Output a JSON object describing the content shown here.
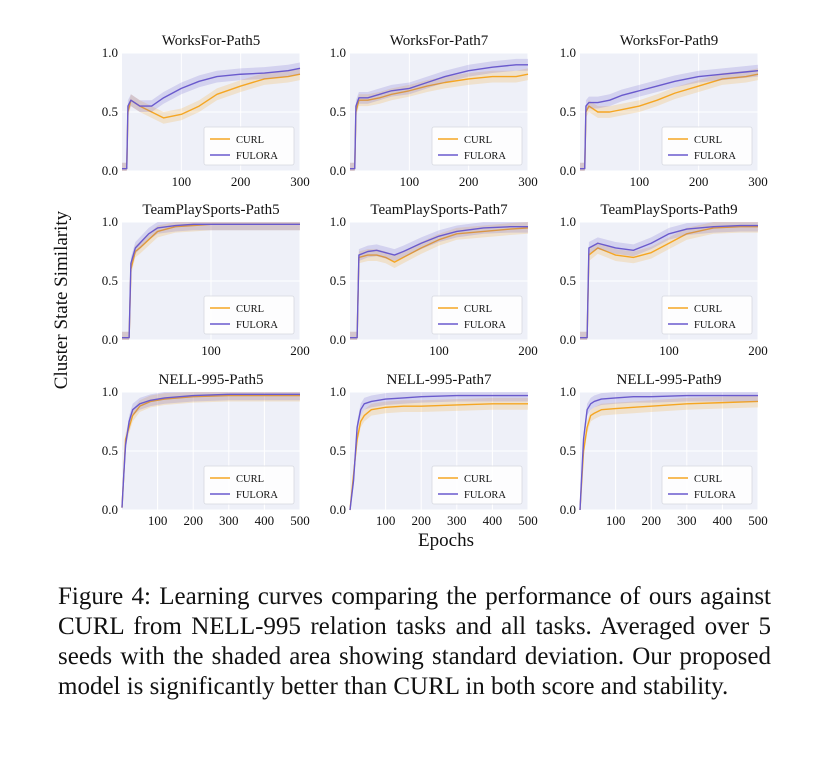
{
  "figure": {
    "ylabel": "Cluster State Similarity",
    "xlabel": "Epochs",
    "caption": "Figure 4: Learning curves comparing the performance of ours against CURL from NELL-995 relation tasks and all tasks. Averaged over 5 seeds with the shaded area showing standard deviation. Our proposed model is significantly better than CURL in both score and stability."
  },
  "colors": {
    "curl": "#f5a623",
    "fulora": "#6a5acd",
    "panel_bg": "#eef0f8",
    "grid": "#ffffff"
  },
  "chart_data": [
    {
      "type": "line",
      "title": "WorksFor-Path5",
      "xlim": [
        0,
        300
      ],
      "ylim": [
        0,
        1.0
      ],
      "xticks": [
        100,
        200,
        300
      ],
      "yticks": [
        0.0,
        0.5,
        1.0
      ],
      "ytick_labels": [
        "0.0",
        "0.5",
        "1.0"
      ],
      "legend": "bottom-right",
      "series": [
        {
          "name": "CURL",
          "x": [
            0,
            8,
            10,
            15,
            30,
            50,
            70,
            100,
            130,
            160,
            200,
            240,
            280,
            300
          ],
          "y": [
            0.02,
            0.02,
            0.5,
            0.6,
            0.55,
            0.5,
            0.45,
            0.48,
            0.55,
            0.65,
            0.72,
            0.78,
            0.8,
            0.82
          ]
        },
        {
          "name": "FULORA",
          "x": [
            0,
            8,
            10,
            15,
            30,
            50,
            70,
            100,
            130,
            160,
            200,
            240,
            280,
            300
          ],
          "y": [
            0.02,
            0.02,
            0.55,
            0.6,
            0.55,
            0.55,
            0.62,
            0.7,
            0.76,
            0.8,
            0.82,
            0.83,
            0.85,
            0.87
          ]
        }
      ]
    },
    {
      "type": "line",
      "title": "WorksFor-Path7",
      "xlim": [
        0,
        300
      ],
      "ylim": [
        0,
        1.0
      ],
      "xticks": [
        100,
        200,
        300
      ],
      "yticks": [
        0.0,
        0.5,
        1.0
      ],
      "ytick_labels": [
        "0.0",
        "0.5",
        "1.0"
      ],
      "legend": "bottom-right",
      "series": [
        {
          "name": "CURL",
          "x": [
            0,
            8,
            10,
            15,
            30,
            50,
            70,
            100,
            130,
            160,
            200,
            240,
            280,
            300
          ],
          "y": [
            0.02,
            0.02,
            0.5,
            0.6,
            0.6,
            0.62,
            0.65,
            0.68,
            0.72,
            0.75,
            0.78,
            0.8,
            0.8,
            0.82
          ]
        },
        {
          "name": "FULORA",
          "x": [
            0,
            8,
            10,
            15,
            30,
            50,
            70,
            100,
            130,
            160,
            200,
            240,
            280,
            300
          ],
          "y": [
            0.02,
            0.02,
            0.55,
            0.62,
            0.62,
            0.65,
            0.68,
            0.7,
            0.75,
            0.8,
            0.85,
            0.88,
            0.9,
            0.9
          ]
        }
      ]
    },
    {
      "type": "line",
      "title": "WorksFor-Path9",
      "xlim": [
        0,
        300
      ],
      "ylim": [
        0,
        1.0
      ],
      "xticks": [
        100,
        200,
        300
      ],
      "yticks": [
        0.0,
        0.5,
        1.0
      ],
      "ytick_labels": [
        "0.0",
        "0.5",
        "1.0"
      ],
      "legend": "bottom-right",
      "series": [
        {
          "name": "CURL",
          "x": [
            0,
            8,
            10,
            15,
            30,
            50,
            70,
            100,
            130,
            160,
            200,
            240,
            280,
            300
          ],
          "y": [
            0.02,
            0.02,
            0.5,
            0.55,
            0.5,
            0.5,
            0.52,
            0.55,
            0.6,
            0.66,
            0.72,
            0.78,
            0.8,
            0.82
          ]
        },
        {
          "name": "FULORA",
          "x": [
            0,
            8,
            10,
            15,
            30,
            50,
            70,
            100,
            130,
            160,
            200,
            240,
            280,
            300
          ],
          "y": [
            0.02,
            0.02,
            0.55,
            0.58,
            0.58,
            0.6,
            0.64,
            0.68,
            0.72,
            0.76,
            0.8,
            0.82,
            0.84,
            0.85
          ]
        }
      ]
    },
    {
      "type": "line",
      "title": "TeamPlaySports-Path5",
      "xlim": [
        0,
        200
      ],
      "ylim": [
        0,
        1.0
      ],
      "xticks": [
        100,
        200
      ],
      "yticks": [
        0.0,
        0.5,
        1.0
      ],
      "ytick_labels": [
        "0.0",
        "0.5",
        "1.0"
      ],
      "legend": "bottom-right",
      "series": [
        {
          "name": "CURL",
          "x": [
            0,
            8,
            10,
            15,
            20,
            30,
            40,
            60,
            80,
            100,
            150,
            200
          ],
          "y": [
            0.02,
            0.02,
            0.6,
            0.75,
            0.78,
            0.85,
            0.92,
            0.96,
            0.97,
            0.98,
            0.98,
            0.98
          ]
        },
        {
          "name": "FULORA",
          "x": [
            0,
            8,
            10,
            15,
            20,
            30,
            40,
            60,
            80,
            100,
            150,
            200
          ],
          "y": [
            0.02,
            0.02,
            0.65,
            0.78,
            0.82,
            0.9,
            0.95,
            0.97,
            0.98,
            0.98,
            0.98,
            0.98
          ]
        }
      ]
    },
    {
      "type": "line",
      "title": "TeamPlaySports-Path7",
      "xlim": [
        0,
        200
      ],
      "ylim": [
        0,
        1.0
      ],
      "xticks": [
        100,
        200
      ],
      "yticks": [
        0.0,
        0.5,
        1.0
      ],
      "ytick_labels": [
        "0.0",
        "0.5",
        "1.0"
      ],
      "legend": "bottom-right",
      "series": [
        {
          "name": "CURL",
          "x": [
            0,
            8,
            10,
            20,
            30,
            40,
            50,
            60,
            80,
            100,
            120,
            150,
            180,
            200
          ],
          "y": [
            0.02,
            0.02,
            0.7,
            0.72,
            0.72,
            0.7,
            0.66,
            0.7,
            0.78,
            0.85,
            0.9,
            0.92,
            0.94,
            0.95
          ]
        },
        {
          "name": "FULORA",
          "x": [
            0,
            8,
            10,
            20,
            30,
            40,
            50,
            60,
            80,
            100,
            120,
            150,
            180,
            200
          ],
          "y": [
            0.02,
            0.02,
            0.72,
            0.75,
            0.76,
            0.74,
            0.72,
            0.75,
            0.82,
            0.88,
            0.92,
            0.95,
            0.96,
            0.96
          ]
        }
      ]
    },
    {
      "type": "line",
      "title": "TeamPlaySports-Path9",
      "xlim": [
        0,
        200
      ],
      "ylim": [
        0,
        1.0
      ],
      "xticks": [
        100,
        200
      ],
      "yticks": [
        0.0,
        0.5,
        1.0
      ],
      "ytick_labels": [
        "0.0",
        "0.5",
        "1.0"
      ],
      "legend": "bottom-right",
      "series": [
        {
          "name": "CURL",
          "x": [
            0,
            8,
            10,
            20,
            30,
            40,
            60,
            80,
            100,
            120,
            150,
            180,
            200
          ],
          "y": [
            0.02,
            0.02,
            0.72,
            0.78,
            0.75,
            0.72,
            0.7,
            0.74,
            0.82,
            0.9,
            0.95,
            0.96,
            0.96
          ]
        },
        {
          "name": "FULORA",
          "x": [
            0,
            8,
            10,
            20,
            30,
            40,
            60,
            80,
            100,
            120,
            150,
            180,
            200
          ],
          "y": [
            0.02,
            0.02,
            0.78,
            0.82,
            0.8,
            0.78,
            0.76,
            0.82,
            0.9,
            0.94,
            0.96,
            0.97,
            0.97
          ]
        }
      ]
    },
    {
      "type": "line",
      "title": "NELL-995-Path5",
      "xlim": [
        0,
        500
      ],
      "ylim": [
        0,
        1.0
      ],
      "xticks": [
        100,
        200,
        300,
        400,
        500
      ],
      "yticks": [
        0.0,
        0.5,
        1.0
      ],
      "ytick_labels": [
        "0.0",
        "0.5",
        "1.0"
      ],
      "legend": "bottom-right",
      "series": [
        {
          "name": "CURL",
          "x": [
            0,
            5,
            10,
            20,
            30,
            50,
            80,
            120,
            200,
            300,
            400,
            500
          ],
          "y": [
            0.02,
            0.3,
            0.6,
            0.7,
            0.8,
            0.88,
            0.92,
            0.94,
            0.96,
            0.97,
            0.97,
            0.97
          ]
        },
        {
          "name": "FULORA",
          "x": [
            0,
            5,
            10,
            20,
            30,
            50,
            80,
            120,
            200,
            300,
            400,
            500
          ],
          "y": [
            0.02,
            0.3,
            0.55,
            0.75,
            0.85,
            0.9,
            0.93,
            0.95,
            0.97,
            0.98,
            0.98,
            0.98
          ]
        }
      ]
    },
    {
      "type": "line",
      "title": "NELL-995-Path7",
      "xlim": [
        0,
        500
      ],
      "ylim": [
        0,
        1.0
      ],
      "xticks": [
        100,
        200,
        300,
        400,
        500
      ],
      "yticks": [
        0.0,
        0.5,
        1.0
      ],
      "ytick_labels": [
        "0.0",
        "0.5",
        "1.0"
      ],
      "legend": "bottom-right",
      "series": [
        {
          "name": "CURL",
          "x": [
            0,
            10,
            20,
            30,
            40,
            60,
            100,
            150,
            200,
            300,
            400,
            500
          ],
          "y": [
            0.0,
            0.3,
            0.6,
            0.75,
            0.8,
            0.85,
            0.87,
            0.88,
            0.88,
            0.89,
            0.9,
            0.9
          ]
        },
        {
          "name": "FULORA",
          "x": [
            0,
            10,
            20,
            30,
            40,
            60,
            100,
            150,
            200,
            300,
            400,
            500
          ],
          "y": [
            0.0,
            0.25,
            0.7,
            0.85,
            0.9,
            0.92,
            0.94,
            0.95,
            0.96,
            0.97,
            0.97,
            0.97
          ]
        }
      ]
    },
    {
      "type": "line",
      "title": "NELL-995-Path9",
      "xlim": [
        0,
        500
      ],
      "ylim": [
        0,
        1.0
      ],
      "xticks": [
        100,
        200,
        300,
        400,
        500
      ],
      "yticks": [
        0.0,
        0.5,
        1.0
      ],
      "ytick_labels": [
        "0.0",
        "0.5",
        "1.0"
      ],
      "legend": "bottom-right",
      "series": [
        {
          "name": "CURL",
          "x": [
            0,
            10,
            20,
            30,
            40,
            60,
            100,
            150,
            200,
            300,
            400,
            500
          ],
          "y": [
            0.0,
            0.5,
            0.7,
            0.8,
            0.82,
            0.85,
            0.86,
            0.87,
            0.88,
            0.9,
            0.91,
            0.92
          ]
        },
        {
          "name": "FULORA",
          "x": [
            0,
            10,
            20,
            30,
            40,
            60,
            100,
            150,
            200,
            300,
            400,
            500
          ],
          "y": [
            0.0,
            0.6,
            0.85,
            0.9,
            0.92,
            0.94,
            0.95,
            0.96,
            0.96,
            0.97,
            0.97,
            0.97
          ]
        }
      ]
    }
  ]
}
